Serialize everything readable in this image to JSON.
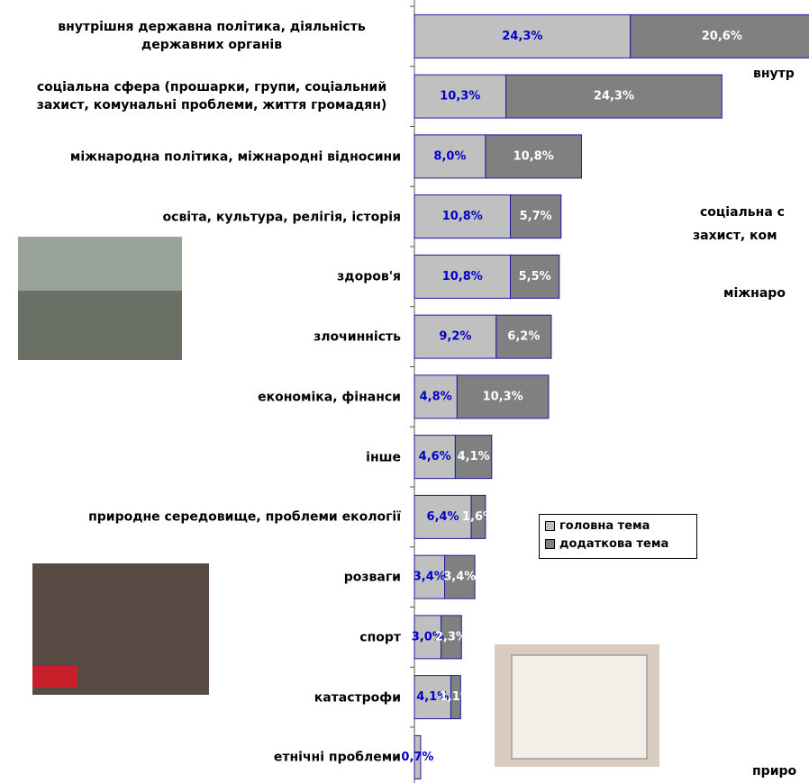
{
  "chart_data": {
    "type": "stacked-bar-horizontal",
    "categories": [
      "внутрішня державна політика, діяльність державних органів",
      "соціальна сфера (прошарки, групи, соціальний захист, комунальні проблеми, життя громадян)",
      "міжнародна політика, міжнародні відносини",
      "освіта, культура, релігія, історія",
      "здоров'я",
      "злочинність",
      "економіка, фінанси",
      "інше",
      "природне середовище, проблеми екології",
      "розваги",
      "спорт",
      "катастрофи",
      "етнічні проблеми"
    ],
    "series": [
      {
        "name": "головна тема",
        "color": "#c0c0c0",
        "values": [
          24.3,
          10.3,
          8.0,
          10.8,
          10.8,
          9.2,
          4.8,
          4.6,
          6.4,
          3.4,
          3.0,
          4.1,
          0.7
        ],
        "value_labels": [
          "24,3%",
          "10,3%",
          "8,0%",
          "10,8%",
          "10,8%",
          "9,2%",
          "4,8%",
          "4,6%",
          "6,4%",
          "3,4%",
          "3,0%",
          "4,1%",
          "0,7%"
        ]
      },
      {
        "name": "додаткова тема",
        "color": "#808080",
        "values": [
          20.6,
          24.3,
          10.8,
          5.7,
          5.5,
          6.2,
          10.3,
          4.1,
          1.6,
          3.4,
          2.3,
          1.1,
          null
        ],
        "value_labels": [
          "20,6%",
          "24,3%",
          "10,8%",
          "5,7%",
          "5,5%",
          "6,2%",
          "10,3%",
          "4,1%",
          "1,6%",
          "3,4%",
          "2,3%",
          "1,1%",
          null
        ]
      }
    ],
    "xlim": [
      0,
      44.4
    ],
    "legend": "center",
    "annotations": [
      "внутр",
      "соціальна с",
      "захист, ком",
      "міжнаро",
      "приро"
    ]
  }
}
